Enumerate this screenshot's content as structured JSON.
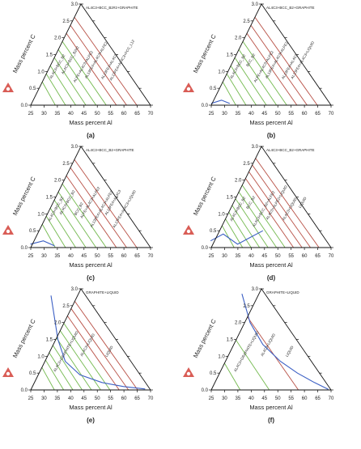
{
  "colors": {
    "tie_green": "#73b94e",
    "tie_red": "#b85045",
    "boundary": "#3b5fc4",
    "frame": "#111111",
    "logo": "#d0342c"
  },
  "panels": [
    {
      "id": "a",
      "caption": "(a)",
      "phase_labels": [
        "AL4C3+BCC_B2#2+GRAPHITE",
        "AL4C3+BCC_B2",
        "AL4C3+BCC_B2#2",
        "ALFE+AL4C3+ALFE2",
        "AL13FE4+AL4C3+ALFE2",
        "AL13FE4+AL4C3",
        "AL13FE4+AL4C3+FCC_L12"
      ],
      "tie_lines": {
        "green": 6,
        "red": 3
      },
      "boundary": []
    },
    {
      "id": "b",
      "caption": "(b)",
      "phase_labels": [
        "AL4C3+BCC_B2+GRAPHITE",
        "AL4C3+BCC_B2",
        "BCC_B2",
        "ALFE+AL4C3+ALFE2",
        "AL13FE4+AL4C3+ALFE2",
        "AL13FE4+AL4C3",
        "AL13FE4+AL4C3+LIQUID"
      ],
      "tie_lines": {
        "green": 6,
        "red": 3
      },
      "boundary": [
        [
          25,
          0.05
        ],
        [
          29,
          0.15
        ],
        [
          32,
          0.05
        ]
      ]
    },
    {
      "id": "c",
      "caption": "(c)",
      "phase_labels": [
        "AL4C3+BCC_B2+GRAPHITE",
        "AL4C3+BCC_B2",
        "AL4C3+BCC_B2",
        "BCC_B2",
        "ALFE+AL4C3+ALFE2",
        "AL13FE4+AL4C3+ALFE2",
        "AL13FE4+AL4C3",
        "AL13FE4+AL4C3+LIQUID"
      ],
      "tie_lines": {
        "green": 6,
        "red": 3
      },
      "boundary": [
        [
          25,
          0.1
        ],
        [
          30,
          0.2
        ],
        [
          34,
          0.05
        ]
      ]
    },
    {
      "id": "d",
      "caption": "(d)",
      "phase_labels": [
        "AL4C3+BCC_B2+GRAPHITE",
        "AL4C3+BCC_B2",
        "BCC_B2",
        "AL4C3+BCC_B2+ALFE2",
        "AL4C3+ALFE2+LIQUID",
        "AL4C3+LIQUID",
        "LIQUID"
      ],
      "tie_lines": {
        "green": 7,
        "red": 4
      },
      "boundary": [
        [
          25,
          0.2
        ],
        [
          30,
          0.4
        ],
        [
          35,
          0.1
        ],
        [
          40,
          0.3
        ],
        [
          45,
          0.5
        ]
      ]
    },
    {
      "id": "e",
      "caption": "(e)",
      "phase_labels": [
        "GRAPHITE+LIQUID",
        "AL4C3+GRAPHITE+LIQUID",
        "AL4C3+LIQUID",
        "LIQUID"
      ],
      "tie_lines": {
        "green": 7,
        "red": 3
      },
      "boundary": [
        [
          36,
          2.8
        ],
        [
          37,
          1.5
        ],
        [
          39,
          0.85
        ],
        [
          44,
          0.45
        ],
        [
          52,
          0.22
        ],
        [
          60,
          0.1
        ],
        [
          68,
          0.03
        ]
      ]
    },
    {
      "id": "f",
      "caption": "(f)",
      "phase_labels": [
        "GRAPHITE+LIQUID",
        "AL4C3+GRAPHITE+LIQUID",
        "AL4C3+LIQUID",
        "LIQUID"
      ],
      "tie_lines": {
        "green": 4,
        "red": 2
      },
      "boundary": [
        [
          40,
          2.85
        ],
        [
          42,
          2.0
        ],
        [
          46,
          1.35
        ],
        [
          52,
          0.85
        ],
        [
          58,
          0.5
        ],
        [
          64,
          0.22
        ],
        [
          69,
          0.02
        ]
      ]
    }
  ],
  "axes": {
    "xlabel": "Mass percent Al",
    "ylabel": "Mass percent C",
    "xticks": [
      "25",
      "30",
      "35",
      "40",
      "45",
      "50",
      "55",
      "60",
      "65",
      "70"
    ],
    "yticks": [
      "0.0",
      "0.5",
      "1.0",
      "1.5",
      "2.0",
      "2.5",
      "3.0"
    ]
  },
  "chart_data": [
    {
      "type": "ternary-isothermal-section",
      "panel": "(a)",
      "xlabel": "Mass percent Al",
      "ylabel": "Mass percent C",
      "xlim": [
        25,
        70
      ],
      "ylim": [
        0,
        3
      ]
    },
    {
      "type": "ternary-isothermal-section",
      "panel": "(b)",
      "xlabel": "Mass percent Al",
      "ylabel": "Mass percent C",
      "xlim": [
        25,
        70
      ],
      "ylim": [
        0,
        3
      ]
    },
    {
      "type": "ternary-isothermal-section",
      "panel": "(c)",
      "xlabel": "Mass percent Al",
      "ylabel": "Mass percent C",
      "xlim": [
        25,
        70
      ],
      "ylim": [
        0,
        3
      ]
    },
    {
      "type": "ternary-isothermal-section",
      "panel": "(d)",
      "xlabel": "Mass percent Al",
      "ylabel": "Mass percent C",
      "xlim": [
        25,
        70
      ],
      "ylim": [
        0,
        3
      ]
    },
    {
      "type": "ternary-isothermal-section",
      "panel": "(e)",
      "xlabel": "Mass percent Al",
      "ylabel": "Mass percent C",
      "xlim": [
        25,
        70
      ],
      "ylim": [
        0,
        3
      ]
    },
    {
      "type": "ternary-isothermal-section",
      "panel": "(f)",
      "xlabel": "Mass percent Al",
      "ylabel": "Mass percent C",
      "xlim": [
        25,
        70
      ],
      "ylim": [
        0,
        3
      ]
    }
  ]
}
